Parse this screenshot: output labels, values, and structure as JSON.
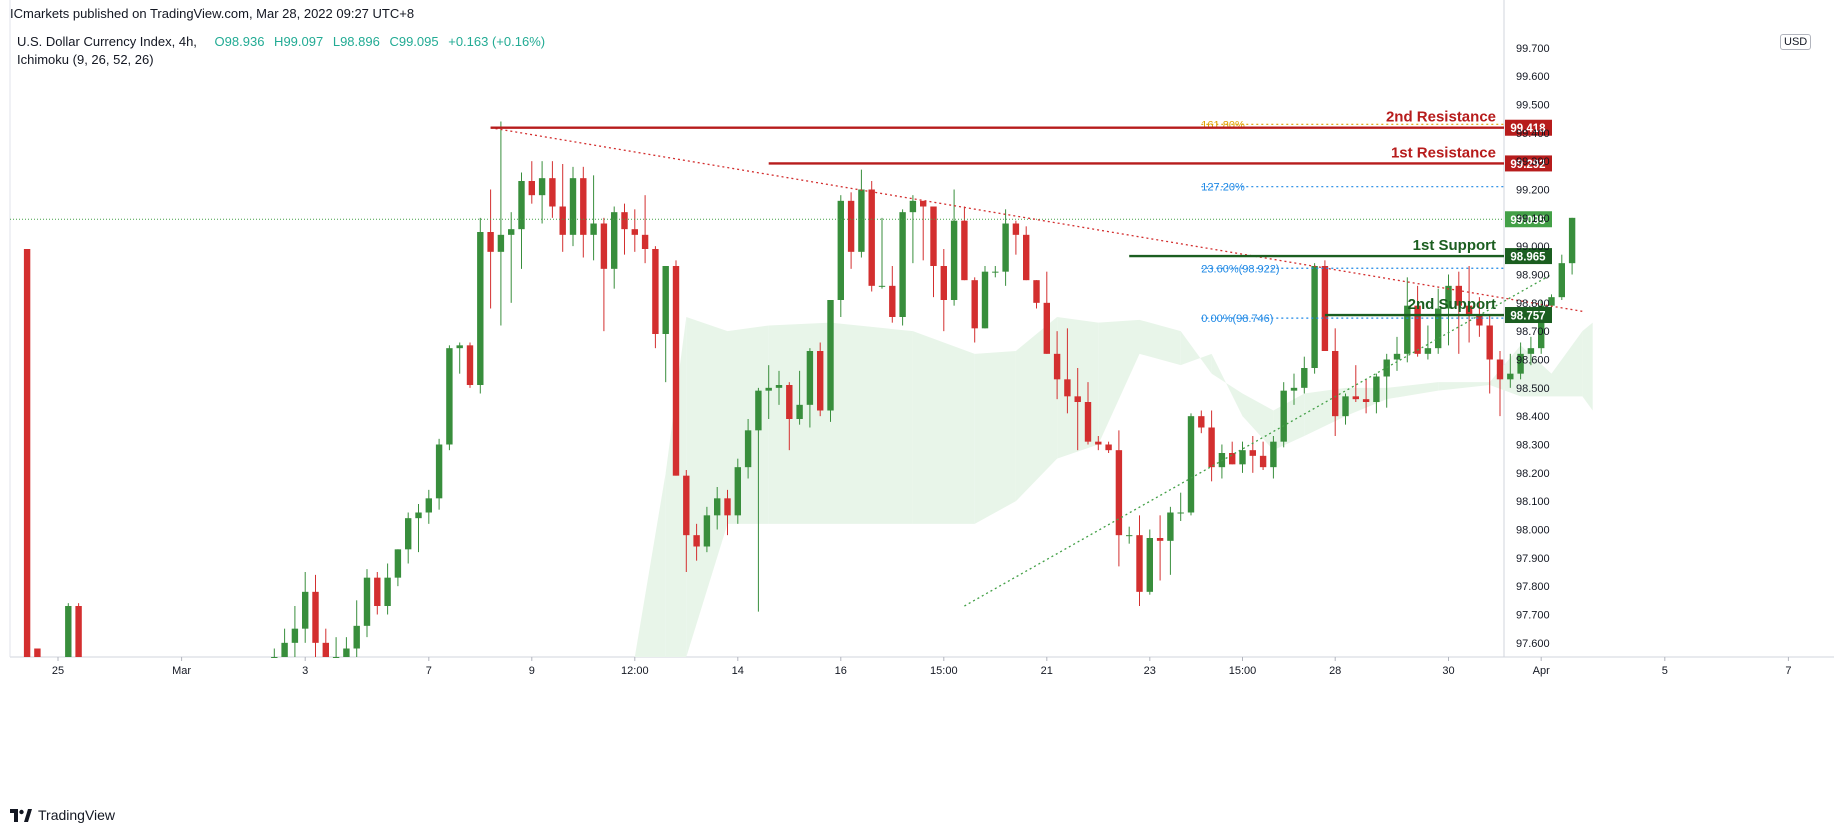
{
  "header": {
    "publisher": "ICmarkets published on TradingView.com, Mar 28, 2022 09:27 UTC+8",
    "symbol": "U.S. Dollar Currency Index, 4h,",
    "indicator": "Ichimoku (9, 26, 52, 26)",
    "open_label": "O",
    "open": "98.936",
    "high_label": "H",
    "high": "99.097",
    "low_label": "L",
    "low": "98.896",
    "close_label": "C",
    "close": "99.095",
    "change": "+0.163 (+0.16%)",
    "currency": "USD"
  },
  "footer": {
    "brand": "TradingView",
    "logo_icon": "tradingview-logo-icon"
  },
  "chart_data": {
    "type": "candlestick",
    "ylim": [
      97.55,
      99.77
    ],
    "y_ticks": [
      "99.700",
      "99.600",
      "99.500",
      "99.400",
      "99.300",
      "99.200",
      "99.100",
      "99.000",
      "98.900",
      "98.800",
      "98.700",
      "98.600",
      "98.500",
      "98.400",
      "98.300",
      "98.200",
      "98.100",
      "98.000",
      "97.900",
      "97.800",
      "97.700",
      "97.600"
    ],
    "y_tick_values": [
      99.7,
      99.6,
      99.5,
      99.4,
      99.3,
      99.2,
      99.1,
      99.0,
      98.9,
      98.8,
      98.7,
      98.6,
      98.5,
      98.4,
      98.3,
      98.2,
      98.1,
      98.0,
      97.9,
      97.8,
      97.7,
      97.6
    ],
    "x_ticks": [
      "25",
      "Mar",
      "3",
      "7",
      "9",
      "12:00",
      "14",
      "16",
      "15:00",
      "21",
      "23",
      "15:00",
      "28",
      "30",
      "Apr",
      "5",
      "7"
    ],
    "x_tick_index": [
      3,
      15,
      27,
      39,
      49,
      59,
      69,
      79,
      89,
      99,
      109,
      118,
      127,
      138,
      147,
      159,
      171
    ],
    "bar_count": 176,
    "colors": {
      "up": "#388e3c",
      "down": "#d32f2f",
      "resistance": "#b71c1c",
      "support": "#1b5e20",
      "cloud_up": "#e8f5e9",
      "cloud_down": "#ffebee",
      "fib_blue": "#1e88e5",
      "fib_orange": "#e0a000",
      "trend_red": "#d32f2f",
      "trend_green": "#43a047"
    },
    "candles": [
      [
        98.99,
        98.99,
        97.55,
        97.55
      ],
      [
        97.58,
        97.58,
        97.55,
        97.55
      ],
      [
        97.55,
        97.55,
        97.55,
        97.55
      ],
      [
        97.55,
        97.55,
        97.55,
        97.55
      ],
      [
        97.55,
        97.74,
        97.55,
        97.73
      ],
      [
        97.73,
        97.74,
        97.55,
        97.55
      ],
      [
        97.55,
        97.55,
        97.55,
        97.55
      ],
      [
        97.55,
        97.55,
        97.55,
        97.55
      ],
      [
        97.55,
        97.55,
        97.55,
        97.55
      ],
      [
        97.55,
        97.55,
        97.55,
        97.55
      ],
      [
        97.55,
        97.55,
        97.55,
        97.55
      ],
      [
        97.55,
        97.55,
        97.55,
        97.55
      ],
      [
        97.55,
        97.55,
        97.55,
        97.55
      ],
      [
        97.55,
        97.55,
        97.55,
        97.55
      ],
      [
        97.55,
        97.55,
        97.55,
        97.55
      ],
      [
        97.55,
        97.55,
        97.55,
        97.55
      ],
      [
        97.55,
        97.55,
        97.55,
        97.55
      ],
      [
        97.55,
        97.55,
        97.55,
        97.55
      ],
      [
        97.55,
        97.55,
        97.55,
        97.55
      ],
      [
        97.55,
        97.55,
        97.55,
        97.55
      ],
      [
        97.55,
        97.55,
        97.55,
        97.55
      ],
      [
        97.55,
        97.55,
        97.55,
        97.55
      ],
      [
        97.55,
        97.55,
        97.55,
        97.55
      ],
      [
        97.55,
        97.55,
        97.55,
        97.55
      ],
      [
        97.55,
        97.58,
        97.55,
        97.55
      ],
      [
        97.55,
        97.65,
        97.55,
        97.6
      ],
      [
        97.6,
        97.73,
        97.55,
        97.65
      ],
      [
        97.65,
        97.85,
        97.6,
        97.78
      ],
      [
        97.78,
        97.84,
        97.55,
        97.6
      ],
      [
        97.6,
        97.65,
        97.55,
        97.55
      ],
      [
        97.55,
        97.62,
        97.55,
        97.55
      ],
      [
        97.55,
        97.62,
        97.55,
        97.58
      ],
      [
        97.58,
        97.75,
        97.55,
        97.66
      ],
      [
        97.66,
        97.86,
        97.62,
        97.83
      ],
      [
        97.83,
        97.85,
        97.7,
        97.73
      ],
      [
        97.73,
        97.88,
        97.7,
        97.83
      ],
      [
        97.83,
        97.93,
        97.8,
        97.93
      ],
      [
        97.93,
        98.06,
        97.88,
        98.04
      ],
      [
        98.04,
        98.09,
        97.92,
        98.06
      ],
      [
        98.06,
        98.14,
        98.02,
        98.11
      ],
      [
        98.11,
        98.32,
        98.07,
        98.3
      ],
      [
        98.3,
        98.65,
        98.28,
        98.64
      ],
      [
        98.64,
        98.66,
        98.55,
        98.65
      ],
      [
        98.65,
        98.66,
        98.5,
        98.51
      ],
      [
        98.51,
        99.1,
        98.48,
        99.05
      ],
      [
        99.05,
        99.2,
        98.78,
        98.98
      ],
      [
        98.98,
        99.44,
        98.72,
        99.04
      ],
      [
        99.04,
        99.12,
        98.8,
        99.06
      ],
      [
        99.06,
        99.26,
        98.92,
        99.23
      ],
      [
        99.23,
        99.3,
        99.15,
        99.18
      ],
      [
        99.18,
        99.3,
        99.08,
        99.24
      ],
      [
        99.24,
        99.3,
        99.1,
        99.14
      ],
      [
        99.14,
        99.29,
        98.98,
        99.04
      ],
      [
        99.04,
        99.28,
        99.0,
        99.24
      ],
      [
        99.24,
        99.28,
        98.96,
        99.04
      ],
      [
        99.04,
        99.25,
        98.95,
        99.08
      ],
      [
        99.08,
        99.1,
        98.7,
        98.92
      ],
      [
        98.92,
        99.14,
        98.85,
        99.12
      ],
      [
        99.12,
        99.15,
        98.97,
        99.06
      ],
      [
        99.06,
        99.13,
        98.98,
        99.04
      ],
      [
        99.04,
        99.18,
        98.94,
        98.99
      ],
      [
        98.99,
        99.0,
        98.64,
        98.69
      ],
      [
        98.69,
        98.93,
        98.52,
        98.93
      ],
      [
        98.93,
        98.95,
        98.19,
        98.19
      ],
      [
        98.19,
        98.21,
        97.85,
        97.98
      ],
      [
        97.98,
        98.02,
        97.89,
        97.94
      ],
      [
        97.94,
        98.08,
        97.92,
        98.05
      ],
      [
        98.05,
        98.15,
        98.0,
        98.11
      ],
      [
        98.11,
        98.14,
        97.98,
        98.05
      ],
      [
        98.05,
        98.25,
        98.02,
        98.22
      ],
      [
        98.22,
        98.39,
        98.18,
        98.35
      ],
      [
        98.35,
        98.5,
        97.71,
        98.49
      ],
      [
        98.49,
        98.58,
        98.39,
        98.5
      ],
      [
        98.5,
        98.56,
        98.44,
        98.51
      ],
      [
        98.51,
        98.52,
        98.28,
        98.39
      ],
      [
        98.39,
        98.56,
        98.37,
        98.44
      ],
      [
        98.44,
        98.64,
        98.36,
        98.63
      ],
      [
        98.63,
        98.66,
        98.4,
        98.42
      ],
      [
        98.42,
        98.81,
        98.38,
        98.81
      ],
      [
        98.81,
        99.18,
        98.75,
        99.16
      ],
      [
        99.16,
        99.19,
        98.92,
        98.98
      ],
      [
        98.98,
        99.27,
        98.96,
        99.2
      ],
      [
        99.2,
        99.23,
        98.84,
        98.86
      ],
      [
        98.86,
        99.1,
        98.85,
        98.86
      ],
      [
        98.86,
        98.93,
        98.73,
        98.75
      ],
      [
        98.75,
        99.13,
        98.72,
        99.12
      ],
      [
        99.12,
        99.18,
        98.94,
        99.16
      ],
      [
        99.16,
        99.16,
        98.95,
        99.14
      ],
      [
        99.14,
        99.14,
        98.82,
        98.93
      ],
      [
        98.93,
        98.99,
        98.7,
        98.81
      ],
      [
        98.81,
        99.2,
        98.79,
        99.09
      ],
      [
        99.09,
        99.14,
        98.88,
        98.88
      ],
      [
        98.88,
        98.89,
        98.66,
        98.71
      ],
      [
        98.71,
        98.93,
        98.71,
        98.91
      ],
      [
        98.91,
        98.93,
        98.89,
        98.91
      ],
      [
        98.91,
        99.13,
        98.86,
        99.08
      ],
      [
        99.08,
        99.09,
        98.97,
        99.04
      ],
      [
        99.04,
        99.07,
        98.88,
        98.88
      ],
      [
        98.88,
        98.88,
        98.78,
        98.8
      ],
      [
        98.8,
        98.91,
        98.62,
        98.62
      ],
      [
        98.62,
        98.7,
        98.46,
        98.53
      ],
      [
        98.53,
        98.71,
        98.41,
        98.47
      ],
      [
        98.47,
        98.57,
        98.28,
        98.45
      ],
      [
        98.45,
        98.52,
        98.3,
        98.31
      ],
      [
        98.31,
        98.33,
        98.28,
        98.3
      ],
      [
        98.3,
        98.31,
        98.27,
        98.28
      ],
      [
        98.28,
        98.35,
        97.87,
        97.98
      ],
      [
        97.98,
        98.01,
        97.95,
        97.98
      ],
      [
        97.98,
        98.05,
        97.73,
        97.78
      ],
      [
        97.78,
        98.0,
        97.77,
        97.97
      ],
      [
        97.97,
        98.05,
        97.82,
        97.96
      ],
      [
        97.96,
        98.08,
        97.84,
        98.06
      ],
      [
        98.06,
        98.13,
        98.03,
        98.06
      ],
      [
        98.06,
        98.41,
        98.05,
        98.4
      ],
      [
        98.4,
        98.42,
        98.34,
        98.36
      ],
      [
        98.36,
        98.42,
        98.17,
        98.22
      ],
      [
        98.22,
        98.3,
        98.18,
        98.27
      ],
      [
        98.27,
        98.31,
        98.23,
        98.23
      ],
      [
        98.23,
        98.31,
        98.2,
        98.28
      ],
      [
        98.28,
        98.33,
        98.2,
        98.26
      ],
      [
        98.26,
        98.31,
        98.21,
        98.22
      ],
      [
        98.22,
        98.33,
        98.18,
        98.31
      ],
      [
        98.31,
        98.52,
        98.29,
        98.49
      ],
      [
        98.49,
        98.55,
        98.44,
        98.5
      ],
      [
        98.5,
        98.61,
        98.48,
        98.57
      ],
      [
        98.57,
        98.94,
        98.55,
        98.93
      ],
      [
        98.93,
        98.95,
        98.64,
        98.63
      ],
      [
        98.63,
        98.71,
        98.33,
        98.4
      ],
      [
        98.4,
        98.48,
        98.37,
        98.47
      ],
      [
        98.47,
        98.58,
        98.45,
        98.46
      ],
      [
        98.46,
        98.53,
        98.41,
        98.45
      ],
      [
        98.45,
        98.55,
        98.41,
        98.54
      ],
      [
        98.54,
        98.62,
        98.43,
        98.6
      ],
      [
        98.6,
        98.68,
        98.56,
        98.62
      ],
      [
        98.62,
        98.89,
        98.59,
        98.79
      ],
      [
        98.79,
        98.86,
        98.61,
        98.62
      ],
      [
        98.62,
        98.72,
        98.6,
        98.64
      ],
      [
        98.64,
        98.85,
        98.62,
        98.78
      ],
      [
        98.78,
        98.9,
        98.65,
        98.86
      ],
      [
        98.86,
        98.91,
        98.62,
        98.79
      ],
      [
        98.79,
        98.93,
        98.66,
        98.76
      ],
      [
        98.76,
        98.82,
        98.68,
        98.72
      ],
      [
        98.72,
        98.76,
        98.48,
        98.6
      ],
      [
        98.6,
        98.63,
        98.4,
        98.53
      ],
      [
        98.53,
        98.62,
        98.5,
        98.55
      ],
      [
        98.55,
        98.66,
        98.53,
        98.62
      ],
      [
        98.62,
        98.68,
        98.58,
        98.64
      ],
      [
        98.64,
        98.81,
        98.62,
        98.79
      ],
      [
        98.79,
        98.83,
        98.76,
        98.82
      ],
      [
        98.82,
        98.97,
        98.81,
        98.94
      ],
      [
        98.94,
        99.1,
        98.9,
        99.1
      ]
    ],
    "ichimoku_cloud": [
      {
        "i": 59,
        "a": 97.55,
        "b": 97.55
      },
      {
        "i": 62,
        "a": 98.2,
        "b": 97.55
      },
      {
        "i": 64,
        "a": 98.75,
        "b": 97.55
      },
      {
        "i": 68,
        "a": 98.7,
        "b": 98.02
      },
      {
        "i": 72,
        "a": 98.72,
        "b": 98.02
      },
      {
        "i": 78,
        "a": 98.73,
        "b": 98.02
      },
      {
        "i": 86,
        "a": 98.7,
        "b": 98.02
      },
      {
        "i": 92,
        "a": 98.62,
        "b": 98.02
      },
      {
        "i": 96,
        "a": 98.63,
        "b": 98.1
      },
      {
        "i": 100,
        "a": 98.75,
        "b": 98.25
      },
      {
        "i": 104,
        "a": 98.73,
        "b": 98.3
      },
      {
        "i": 108,
        "a": 98.74,
        "b": 98.62
      },
      {
        "i": 112,
        "a": 98.7,
        "b": 98.58
      },
      {
        "i": 115,
        "a": 98.55,
        "b": 98.62
      },
      {
        "i": 118,
        "a": 98.48,
        "b": 98.4
      },
      {
        "i": 121,
        "a": 98.42,
        "b": 98.28
      },
      {
        "i": 124,
        "a": 98.48,
        "b": 98.33
      },
      {
        "i": 128,
        "a": 98.5,
        "b": 98.4
      },
      {
        "i": 132,
        "a": 98.5,
        "b": 98.46
      },
      {
        "i": 137,
        "a": 98.52,
        "b": 98.49
      },
      {
        "i": 142,
        "a": 98.52,
        "b": 98.51
      },
      {
        "i": 145,
        "a": 98.65,
        "b": 98.47
      },
      {
        "i": 148,
        "a": 98.55,
        "b": 98.47
      },
      {
        "i": 151,
        "a": 98.7,
        "b": 98.47
      },
      {
        "i": 152,
        "a": 98.73,
        "b": 98.42
      }
    ],
    "levels": [
      {
        "name": "2nd Resistance",
        "value": 99.418,
        "label": "99.418",
        "start_index": 45,
        "kind": "resistance"
      },
      {
        "name": "1st Resistance",
        "value": 99.292,
        "label": "99.292",
        "start_index": 72,
        "kind": "resistance"
      },
      {
        "name": "1st Support",
        "value": 98.965,
        "label": "98.965",
        "start_index": 107,
        "kind": "support"
      },
      {
        "name": "2nd Support",
        "value": 98.757,
        "label": "98.757",
        "start_index": 126,
        "kind": "support"
      }
    ],
    "current_price": {
      "value": 99.095,
      "label": "99.095"
    },
    "fib_levels": [
      {
        "label": "161.80%",
        "value": 99.43,
        "from": 114,
        "to": 176,
        "color": "orange"
      },
      {
        "label": "127.20%",
        "value": 99.21,
        "from": 114,
        "to": 176,
        "color": "blue"
      },
      {
        "label": "23.60%(98.922)",
        "value": 98.922,
        "from": 114,
        "to": 176,
        "color": "blue"
      },
      {
        "label": "0.00%(98.746)",
        "value": 98.746,
        "from": 114,
        "to": 176,
        "color": "blue"
      }
    ],
    "trendlines": [
      {
        "kind": "descending",
        "from": [
          45,
          99.418
        ],
        "to": [
          151,
          98.77
        ],
        "color": "red"
      },
      {
        "kind": "ascending",
        "from": [
          91,
          97.73
        ],
        "to": [
          148,
          98.9
        ],
        "color": "green"
      }
    ]
  }
}
